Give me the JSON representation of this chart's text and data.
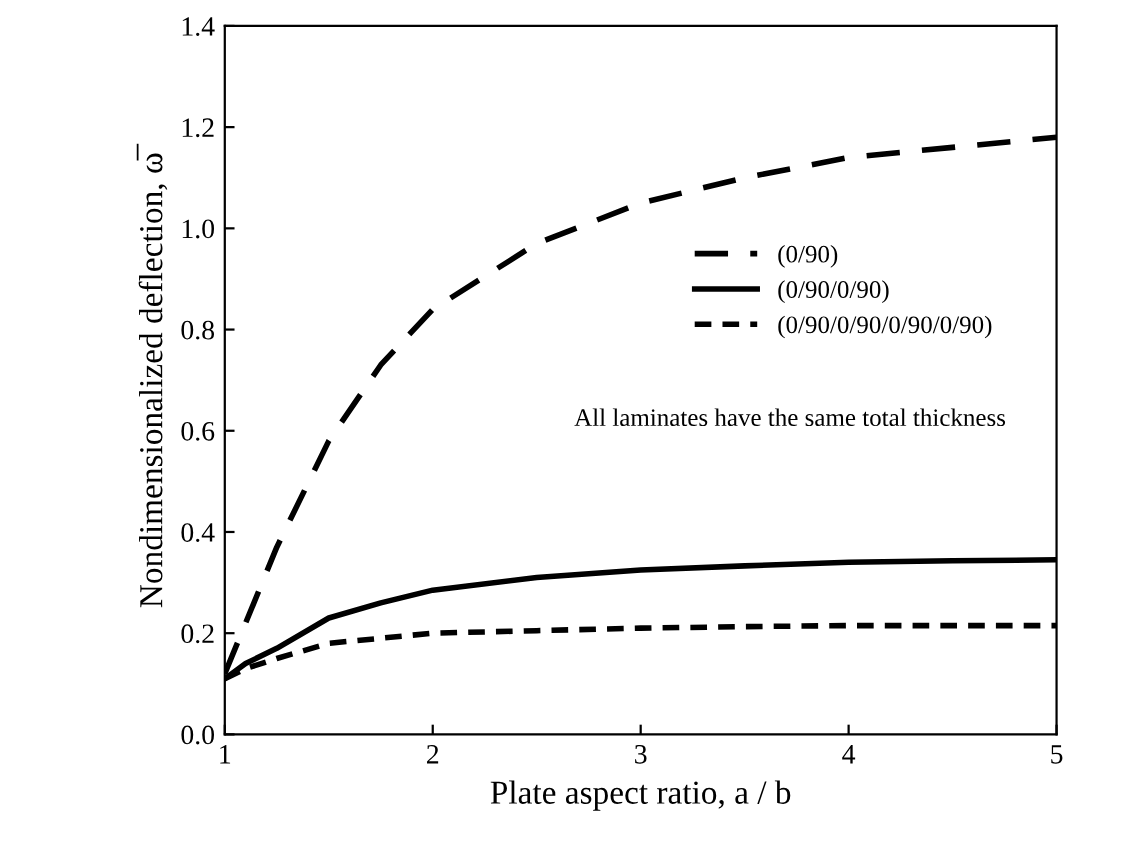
{
  "chart_data": {
    "type": "line",
    "xlabel": "Plate aspect ratio, a / b",
    "ylabel": "Nondimensionalized deflection, ω̅",
    "xlim": [
      1,
      5
    ],
    "xticks": [
      1,
      2,
      3,
      4,
      5
    ],
    "ylim": [
      0,
      1.4
    ],
    "yticks": [
      {
        "value": 0,
        "label": "0.0"
      },
      {
        "value": 0.2,
        "label": "0.2"
      },
      {
        "value": 0.4,
        "label": "0.4"
      },
      {
        "value": 0.6,
        "label": "0.6"
      },
      {
        "value": 0.8,
        "label": "0.8"
      },
      {
        "value": 1.0,
        "label": "1.0"
      },
      {
        "value": 1.2,
        "label": "1.2"
      },
      {
        "value": 1.4,
        "label": "1.4"
      }
    ],
    "grid": false,
    "legend": "center right",
    "marker": "none",
    "annotations": [
      "All laminates have the same total thickness"
    ],
    "series": [
      {
        "name": "(0/90)",
        "color": "#000000",
        "line_style": "dashed",
        "x": [
          1,
          1.1,
          1.25,
          1.5,
          1.75,
          2,
          2.5,
          3,
          3.5,
          4,
          4.5,
          5
        ],
        "values": [
          0.12,
          0.22,
          0.37,
          0.58,
          0.73,
          0.84,
          0.97,
          1.05,
          1.1,
          1.14,
          1.16,
          1.18
        ]
      },
      {
        "name": "(0/90/0/90)",
        "color": "#000000",
        "line_style": "solid",
        "x": [
          1,
          1.1,
          1.25,
          1.5,
          1.75,
          2,
          2.5,
          3,
          3.5,
          4,
          4.5,
          5
        ],
        "values": [
          0.11,
          0.14,
          0.17,
          0.23,
          0.26,
          0.285,
          0.31,
          0.325,
          0.333,
          0.34,
          0.343,
          0.345
        ]
      },
      {
        "name": "(0/90/0/90/0/90/0/90)",
        "color": "#000000",
        "line_style": "dotted",
        "x": [
          1,
          1.1,
          1.25,
          1.5,
          1.75,
          2,
          2.5,
          3,
          3.5,
          4,
          4.5,
          5
        ],
        "values": [
          0.11,
          0.13,
          0.15,
          0.18,
          0.19,
          0.2,
          0.205,
          0.21,
          0.213,
          0.215,
          0.215,
          0.215
        ]
      }
    ]
  }
}
